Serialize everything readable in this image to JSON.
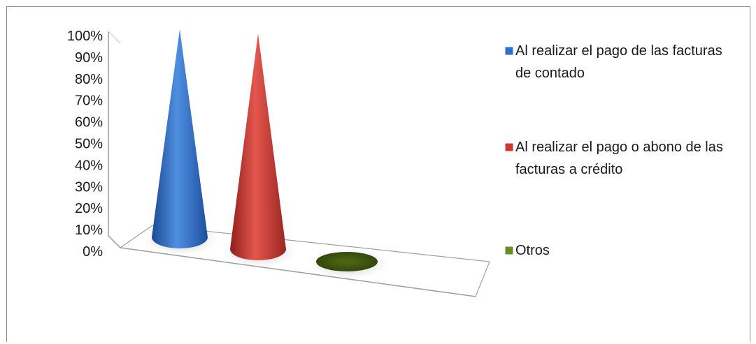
{
  "chart_data": {
    "type": "bar",
    "bar_shape": "cone",
    "three_d": true,
    "title": "",
    "xlabel": "",
    "ylabel": "",
    "ylim": [
      0,
      100
    ],
    "y_ticks": [
      "0%",
      "10%",
      "20%",
      "30%",
      "40%",
      "50%",
      "60%",
      "70%",
      "80%",
      "90%",
      "100%"
    ],
    "grid": false,
    "legend_position": "right",
    "series": [
      {
        "name_lines": [
          "Al realizar el pago de las facturas",
          "de contado"
        ],
        "value": 100,
        "color": "#2f6fc6"
      },
      {
        "name_lines": [
          "Al realizar el pago o abono de las",
          "facturas a crédito"
        ],
        "value": 98,
        "color": "#c93a33"
      },
      {
        "name_lines": [
          "Otros"
        ],
        "value": 0,
        "color": "#6b8e23"
      }
    ]
  }
}
